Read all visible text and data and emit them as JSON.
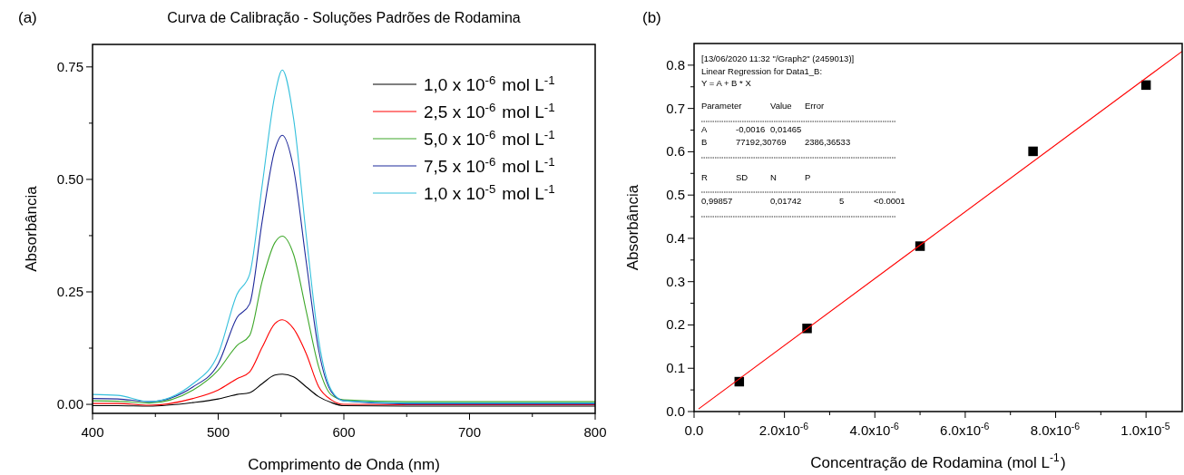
{
  "chart_data": [
    {
      "type": "line",
      "title": "Curva de Calibração - Soluções Padrões de Rodamina",
      "xlabel": "Comprimento de Onda (nm)",
      "ylabel": "Absorbância",
      "annotations": [
        "(a)"
      ],
      "legend": "top right",
      "xlim": [
        400,
        800
      ],
      "ylim": [
        -0.02,
        0.8
      ],
      "xticks": [
        400,
        {
          "value": 450,
          "label": null
        },
        500,
        {
          "value": 550,
          "label": null
        },
        600,
        {
          "value": 650,
          "label": null
        },
        700,
        {
          "value": 750,
          "label": null
        },
        800
      ],
      "yticks": [
        {
          "value": 0,
          "label": "0.00"
        },
        {
          "value": 0.125,
          "label": null
        },
        0.25,
        {
          "value": 0.375,
          "label": null
        },
        {
          "value": 0.5,
          "label": "0.50"
        },
        {
          "value": 0.625,
          "label": null
        },
        0.75
      ],
      "x": [
        400,
        420,
        445,
        480,
        500,
        515,
        525,
        535,
        545,
        551,
        560,
        570,
        580,
        590,
        600,
        650,
        700,
        800
      ],
      "series": [
        {
          "name": "1,0 x 10$^{-6}$ mol L$^{-1}$",
          "color": "#000000",
          "values": [
            -0.003,
            -0.003,
            -0.004,
            0.004,
            0.012,
            0.022,
            0.026,
            0.046,
            0.065,
            0.067,
            0.061,
            0.039,
            0.017,
            0.004,
            -0.003,
            -0.004,
            -0.004,
            -0.004
          ]
        },
        {
          "name": "2,5 x 10$^{-6}$ mol L$^{-1}$",
          "color": "#ff0000",
          "values": [
            0.002,
            0.002,
            -0.002,
            0.013,
            0.032,
            0.057,
            0.072,
            0.127,
            0.179,
            0.188,
            0.168,
            0.113,
            0.039,
            0.01,
            0,
            -0.001,
            -0.001,
            -0.001
          ]
        },
        {
          "name": "5,0 x 10$^{-6}$ mol L$^{-1}$",
          "color": "#3fa82b",
          "values": [
            0.008,
            0.007,
            0.003,
            0.032,
            0.076,
            0.131,
            0.153,
            0.274,
            0.359,
            0.374,
            0.333,
            0.208,
            0.083,
            0.021,
            0.01,
            0.006,
            0.006,
            0.006
          ]
        },
        {
          "name": "7,5 x 10$^{-6}$ mol L$^{-1}$",
          "color": "#1f2a9b",
          "values": [
            0.013,
            0.012,
            0.006,
            0.039,
            0.09,
            0.193,
            0.223,
            0.407,
            0.565,
            0.598,
            0.524,
            0.318,
            0.12,
            0.028,
            0.008,
            0.001,
            0.001,
            0.001
          ]
        },
        {
          "name": "1,0 x 10$^{-5}$ mol L$^{-1}$",
          "color": "#35c0dc",
          "values": [
            0.022,
            0.02,
            0.006,
            0.046,
            0.112,
            0.245,
            0.289,
            0.487,
            0.686,
            0.743,
            0.635,
            0.377,
            0.142,
            0.032,
            0.008,
            0.003,
            0.003,
            0.003
          ]
        }
      ]
    },
    {
      "type": "scatter",
      "xlabel": "Concentração de Rodamina (mol L$^{-1}$)",
      "ylabel": "Absorbância",
      "annotations": [
        "(b)",
        "[13/06/2020 11:32 \"/Graph2\" (2459013)]",
        "Linear Regression for Data1_B:",
        "Y = A + B * X",
        "Parameter\t\tValue\tError",
        "A\t-0,0016\t0,01465",
        "B\t77192,30769\t\t2386,36533",
        "R\tSD\tN\tP",
        "0,99857\t\t0,01742\t\t5\t<0.0001"
      ],
      "xlim": [
        0,
        1.08e-05
      ],
      "ylim": [
        0,
        0.85
      ],
      "xticks": [
        {
          "value": 0,
          "label": "0.0"
        },
        {
          "value": 1e-06,
          "label": null
        },
        {
          "value": 2e-06,
          "label": "2.0x10$^{-6}$"
        },
        {
          "value": 3e-06,
          "label": null
        },
        {
          "value": 4e-06,
          "label": "4.0x10$^{-6}$"
        },
        {
          "value": 5e-06,
          "label": null
        },
        {
          "value": 6e-06,
          "label": "6.0x10$^{-6}$"
        },
        {
          "value": 7e-06,
          "label": null
        },
        {
          "value": 8e-06,
          "label": "8.0x10$^{-6}$"
        },
        {
          "value": 9e-06,
          "label": null
        },
        {
          "value": 1e-05,
          "label": "1.0x10$^{-5}$"
        }
      ],
      "yticks": [
        {
          "value": 0,
          "label": "0.0"
        },
        {
          "value": 0.05,
          "label": null
        },
        0.1,
        {
          "value": 0.15,
          "label": null
        },
        0.2,
        {
          "value": 0.25,
          "label": null
        },
        0.3,
        {
          "value": 0.35,
          "label": null
        },
        0.4,
        {
          "value": 0.45,
          "label": null
        },
        0.5,
        {
          "value": 0.55,
          "label": null
        },
        0.6,
        {
          "value": 0.65,
          "label": null
        },
        0.7,
        {
          "value": 0.75,
          "label": null
        },
        0.8
      ],
      "series": [
        {
          "marker": "square",
          "color": "#000000",
          "x": [
            1e-06,
            2.5e-06,
            5e-06,
            7.5e-06,
            1e-05
          ],
          "values": [
            0.069,
            0.192,
            0.382,
            0.601,
            0.754
          ]
        },
        {
          "type": "line",
          "color": "#ff0000",
          "x": [
            1e-07,
            1.08e-05
          ],
          "values": [
            0.006,
            0.832
          ]
        }
      ]
    }
  ]
}
